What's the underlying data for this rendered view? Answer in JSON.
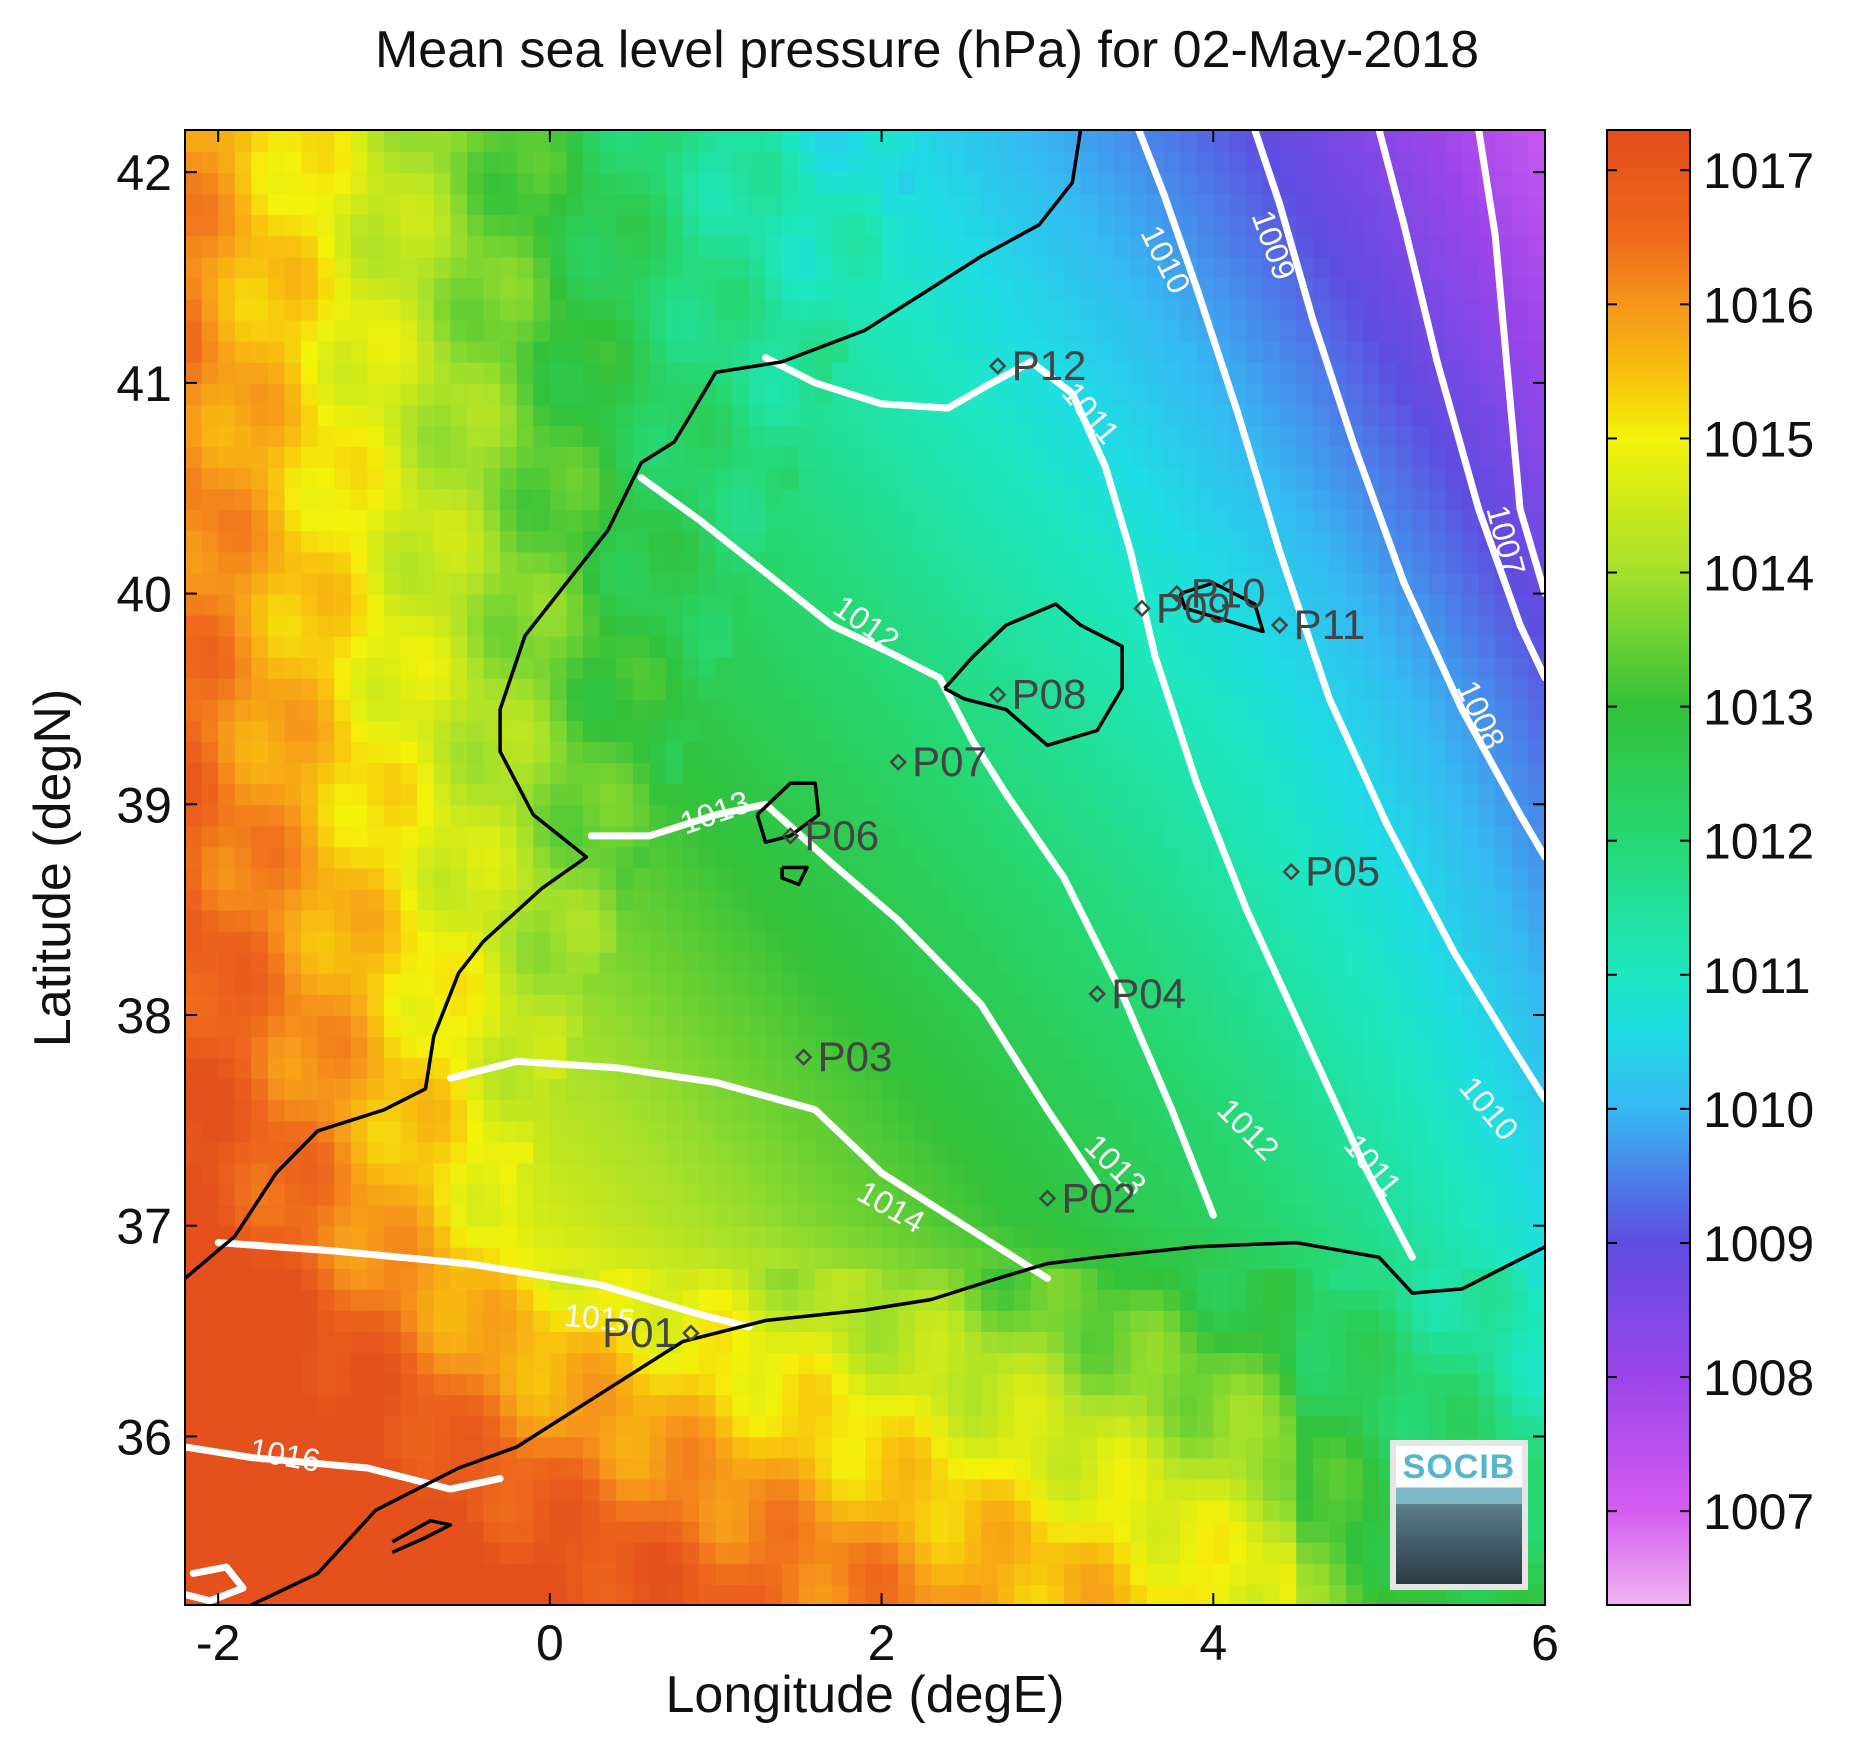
{
  "title": "Mean sea level pressure (hPa) for 02-May-2018",
  "map": {
    "xlabel": "Longitude (degE)",
    "ylabel": "Latitude (degN)",
    "xlim": [
      -2.2,
      6.0
    ],
    "ylim": [
      35.2,
      42.2
    ],
    "xticks": [
      -2,
      0,
      2,
      4,
      6
    ],
    "yticks": [
      36,
      37,
      38,
      39,
      40,
      41,
      42
    ],
    "colorbar": {
      "ticks": [
        1007,
        1008,
        1009,
        1010,
        1011,
        1012,
        1013,
        1014,
        1015,
        1016,
        1017
      ],
      "range": [
        1006.3,
        1017.3
      ],
      "stops": [
        {
          "value": 1006.3,
          "color": "#f0b3f2"
        },
        {
          "value": 1007.0,
          "color": "#d55cf0"
        },
        {
          "value": 1008.0,
          "color": "#9b45ea"
        },
        {
          "value": 1009.0,
          "color": "#5f4ce0"
        },
        {
          "value": 1010.0,
          "color": "#36b8f2"
        },
        {
          "value": 1010.6,
          "color": "#1fdde3"
        },
        {
          "value": 1011.0,
          "color": "#1ee8c2"
        },
        {
          "value": 1012.0,
          "color": "#26d874"
        },
        {
          "value": 1013.0,
          "color": "#33c13a"
        },
        {
          "value": 1014.0,
          "color": "#a5e02b"
        },
        {
          "value": 1015.0,
          "color": "#f4f20a"
        },
        {
          "value": 1015.5,
          "color": "#f8be0f"
        },
        {
          "value": 1016.0,
          "color": "#f6961b"
        },
        {
          "value": 1016.5,
          "color": "#ee6a1c"
        },
        {
          "value": 1017.3,
          "color": "#e34d1c"
        }
      ]
    },
    "contour_labels": [
      {
        "text": "1010",
        "lon": 3.7,
        "lat": 41.58,
        "angle": 63
      },
      {
        "text": "1009",
        "lon": 4.35,
        "lat": 41.65,
        "angle": 70
      },
      {
        "text": "1011",
        "lon": 3.25,
        "lat": 40.85,
        "angle": 50
      },
      {
        "text": "1007",
        "lon": 5.75,
        "lat": 40.25,
        "angle": 75
      },
      {
        "text": "1012",
        "lon": 1.9,
        "lat": 39.85,
        "angle": 35
      },
      {
        "text": "1008",
        "lon": 5.6,
        "lat": 39.42,
        "angle": 65
      },
      {
        "text": "1013",
        "lon": 1.0,
        "lat": 38.95,
        "angle": -20
      },
      {
        "text": "1012",
        "lon": 4.2,
        "lat": 37.45,
        "angle": 45
      },
      {
        "text": "1010",
        "lon": 5.65,
        "lat": 37.55,
        "angle": 50
      },
      {
        "text": "1013",
        "lon": 3.4,
        "lat": 37.28,
        "angle": 45
      },
      {
        "text": "1011",
        "lon": 4.95,
        "lat": 37.28,
        "angle": 50
      },
      {
        "text": "1014",
        "lon": 2.05,
        "lat": 37.08,
        "angle": 30
      },
      {
        "text": "1015",
        "lon": 0.3,
        "lat": 36.55,
        "angle": 5
      },
      {
        "text": "1016",
        "lon": -1.6,
        "lat": 35.9,
        "angle": 10
      }
    ],
    "stations": [
      {
        "id": "P12",
        "lon": 2.7,
        "lat": 41.08
      },
      {
        "id": "P10",
        "lon": 3.78,
        "lat": 40.0
      },
      {
        "id": "P09",
        "lon": 3.57,
        "lat": 39.93
      },
      {
        "id": "P11",
        "lon": 4.4,
        "lat": 39.85
      },
      {
        "id": "P08",
        "lon": 2.7,
        "lat": 39.52
      },
      {
        "id": "P07",
        "lon": 2.1,
        "lat": 39.2
      },
      {
        "id": "P06",
        "lon": 1.45,
        "lat": 38.85
      },
      {
        "id": "P05",
        "lon": 4.47,
        "lat": 38.68
      },
      {
        "id": "P04",
        "lon": 3.3,
        "lat": 38.1
      },
      {
        "id": "P03",
        "lon": 1.53,
        "lat": 37.8
      },
      {
        "id": "P02",
        "lon": 3.0,
        "lat": 37.13
      },
      {
        "id": "P01",
        "lon": 0.85,
        "lat": 36.49
      }
    ]
  },
  "logo": {
    "text": "SOCIB"
  }
}
